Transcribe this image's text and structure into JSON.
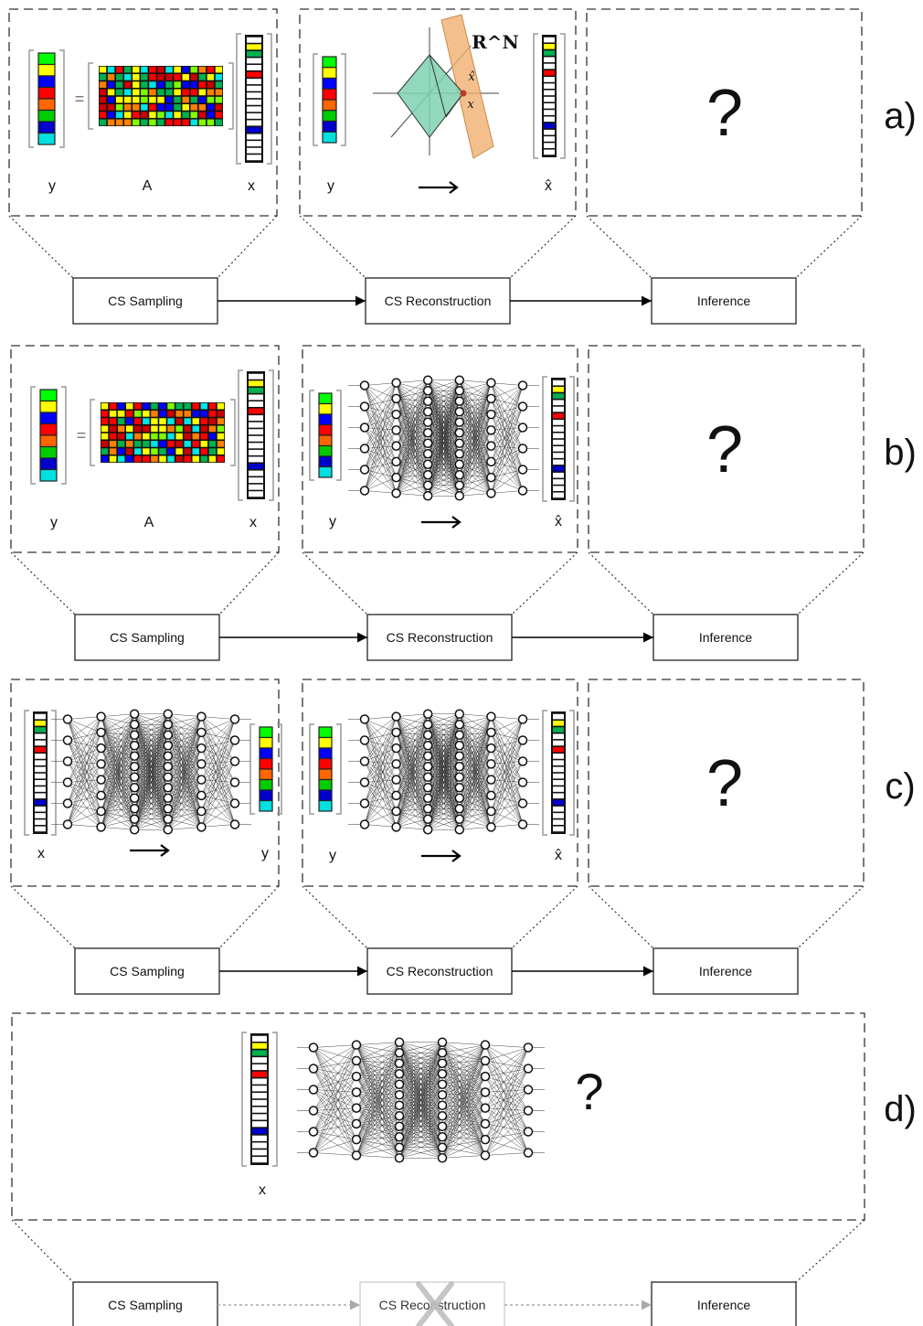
{
  "rows": [
    {
      "id": "a",
      "tag": "a)",
      "panel1": "sampling_matrix",
      "panel2": "l1_recovery",
      "labels": {
        "y": "y",
        "A": "A",
        "x": "x",
        "y2": "y",
        "xhat": "x̂"
      },
      "question": "?",
      "blocks": {
        "sampling": "CS Sampling",
        "reconstruction": "CS Reconstruction",
        "inference": "Inference"
      },
      "math_label": "R^N",
      "math_xhat": "x̂",
      "math_x": "x"
    },
    {
      "id": "b",
      "tag": "b)",
      "panel1": "sampling_matrix",
      "panel2": "neural_net",
      "labels": {
        "y": "y",
        "A": "A",
        "x": "x",
        "y2": "y",
        "xhat": "x̂"
      },
      "question": "?",
      "blocks": {
        "sampling": "CS Sampling",
        "reconstruction": "CS Reconstruction",
        "inference": "Inference"
      }
    },
    {
      "id": "c",
      "tag": "c)",
      "panel1": "neural_encoder",
      "panel2": "neural_net",
      "labels": {
        "x": "x",
        "y": "y",
        "y2": "y",
        "xhat": "x̂"
      },
      "question": "?",
      "blocks": {
        "sampling": "CS Sampling",
        "reconstruction": "CS Reconstruction",
        "inference": "Inference"
      }
    },
    {
      "id": "d",
      "tag": "d)",
      "labels": {
        "x": "x"
      },
      "question": "?",
      "blocks": {
        "sampling": "CS Sampling",
        "reconstruction": "CS Reconstruction",
        "inference": "Inference"
      },
      "reconstruction_disabled": true
    }
  ],
  "colors": {
    "palette": [
      "#ff0000",
      "#00b050",
      "#0000ff",
      "#ffff00",
      "#00e5e5",
      "#ff8000",
      "#80ff00",
      "#cc0000"
    ],
    "y_column": [
      "#00ff00",
      "#ffff00",
      "#0000ff",
      "#ff0000",
      "#ff6600",
      "#00cc00",
      "#0000cc",
      "#00e0e0"
    ],
    "x_column_colored": {
      "1": "#ffff00",
      "2": "#00b050",
      "5": "#ff0000",
      "13": "#0000cc"
    },
    "l1_polytope": "#7fd1b0",
    "hyperplane": "#f0b070",
    "disabled_cross": "#bbbbbb"
  },
  "icons": {
    "arrow": "right-arrow-icon",
    "cross": "cross-icon"
  }
}
